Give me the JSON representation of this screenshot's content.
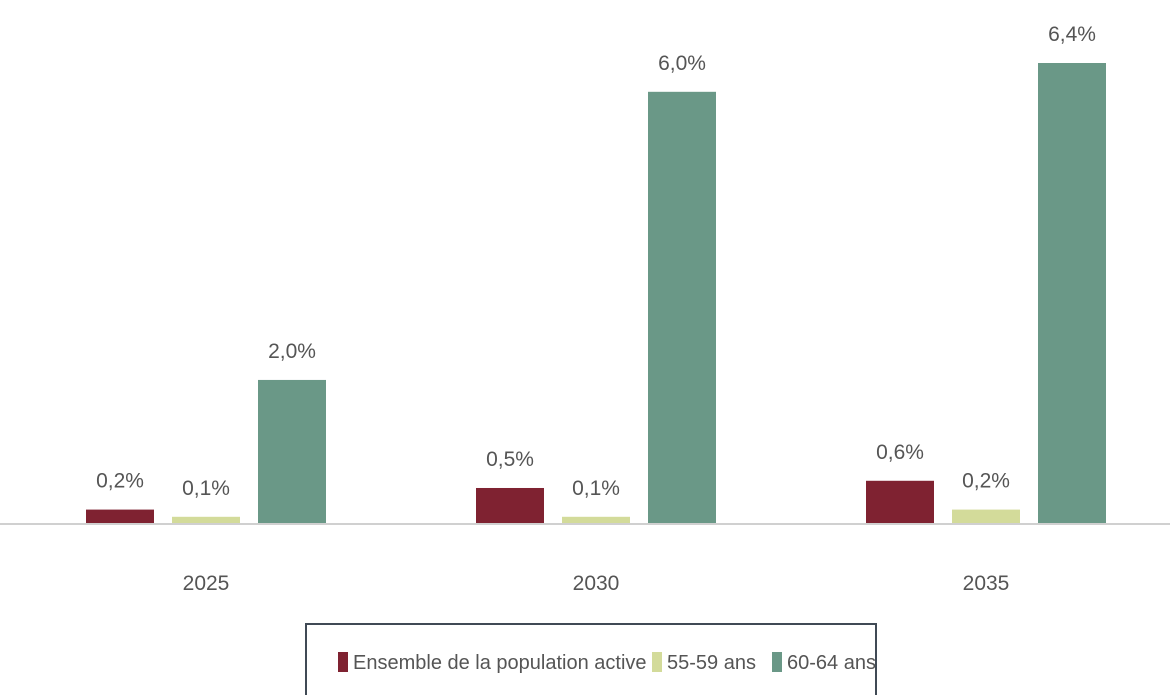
{
  "chart_data": {
    "type": "bar",
    "categories": [
      "2025",
      "2030",
      "2035"
    ],
    "series": [
      {
        "name": "Ensemble de la population active",
        "color": "#7f2231",
        "values": [
          0.2,
          0.5,
          0.6
        ],
        "labels": [
          "0,2%",
          "0,5%",
          "0,6%"
        ]
      },
      {
        "name": "55-59 ans",
        "color": "#d3db9a",
        "values": [
          0.1,
          0.1,
          0.2
        ],
        "labels": [
          "0,1%",
          "0,1%",
          "0,2%"
        ]
      },
      {
        "name": "60-64 ans",
        "color": "#6a9887",
        "values": [
          2.0,
          6.0,
          6.4
        ],
        "labels": [
          "2,0%",
          "6,0%",
          "6,4%"
        ]
      }
    ],
    "ylim": [
      0,
      6.4
    ],
    "grid": false,
    "legend_position": "bottom"
  }
}
